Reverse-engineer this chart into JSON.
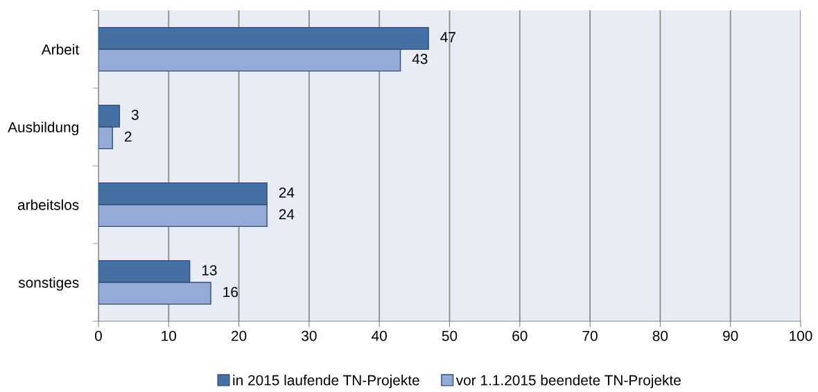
{
  "chart_data": {
    "type": "bar",
    "orientation": "horizontal",
    "categories": [
      "Arbeit",
      "Ausbildung",
      "arbeitslos",
      "sonstiges"
    ],
    "series": [
      {
        "name": "in 2015 laufende TN-Projekte",
        "color": "#4470a3",
        "values": [
          47,
          3,
          24,
          13
        ]
      },
      {
        "name": "vor 1.1.2015 beendete TN-Projekte",
        "color": "#95aad4",
        "values": [
          43,
          2,
          24,
          16
        ]
      }
    ],
    "xlim": [
      0,
      100
    ],
    "xticks": [
      0,
      10,
      20,
      30,
      40,
      50,
      60,
      70,
      80,
      90,
      100
    ],
    "grid": "x",
    "legend": "bottom",
    "data_labels": true
  }
}
